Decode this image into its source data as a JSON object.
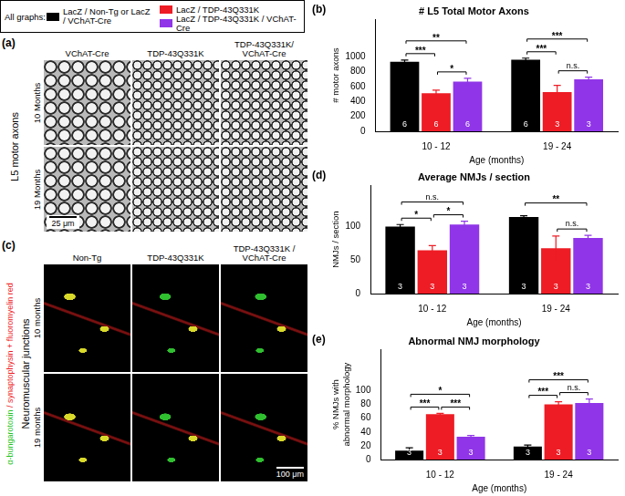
{
  "legend_box": {
    "title": "All graphs:"
  },
  "panel_a": {
    "label": "(a)",
    "side_label": "L5 motor axons",
    "columns": [
      "VChAT-Cre",
      "TDP-43Q331K",
      "TDP-43Q331K/ VChAT-Cre"
    ],
    "rows": [
      "10 Months",
      "19 Months"
    ],
    "scale_bar": "25 μm"
  },
  "panel_c": {
    "label": "(c)",
    "side_label": "Neuromuscular junctions",
    "stain": [
      {
        "text": "α-bungarotoxin",
        "color": "#22c322"
      },
      {
        "text": " / synaptophysin + fluoromyelin red",
        "color": "#ee1c25"
      }
    ],
    "columns": [
      "Non-Tg",
      "TDP-43Q331K",
      "TDP-43Q331K / VChAT-Cre"
    ],
    "rows": [
      "10 months",
      "19 months"
    ],
    "scale_bar": "100 μm"
  },
  "chart_data": [
    {
      "panel": "(b)",
      "type": "bar",
      "title": "# L5 Total Motor Axons",
      "x_label": "Age (months)",
      "y_label": "# motor axons",
      "categories": [
        "10 - 12",
        "19 - 24"
      ],
      "series": [
        {
          "name": "LacZ / Non-Tg or LacZ / VChAT-Cre",
          "color": "#000000",
          "values": [
            930,
            960
          ],
          "errors": [
            25,
            20
          ],
          "n": [
            6,
            6
          ]
        },
        {
          "name": "LacZ / TDP-43Q331K",
          "color": "#ee1c25",
          "values": [
            510,
            525
          ],
          "errors": [
            40,
            90
          ],
          "n": [
            6,
            3
          ]
        },
        {
          "name": "LacZ / TDP-43Q331K / VChAT-Cre",
          "color": "#9035e8",
          "values": [
            665,
            695
          ],
          "errors": [
            45,
            30
          ],
          "n": [
            6,
            3
          ]
        }
      ],
      "comparisons": [
        {
          "category": "10 - 12",
          "between": [
            0,
            1
          ],
          "label": "***"
        },
        {
          "category": "10 - 12",
          "between": [
            1,
            2
          ],
          "label": "*"
        },
        {
          "category": "10 - 12",
          "between": [
            0,
            2
          ],
          "label": "**"
        },
        {
          "category": "19 - 24",
          "between": [
            0,
            1
          ],
          "label": "***"
        },
        {
          "category": "19 - 24",
          "between": [
            1,
            2
          ],
          "label": "n.s."
        },
        {
          "category": "19 - 24",
          "between": [
            0,
            2
          ],
          "label": "***"
        }
      ],
      "ylim": [
        0,
        1500
      ],
      "yticks": [
        0,
        200,
        400,
        600,
        800,
        1000
      ],
      "grid": false
    },
    {
      "panel": "(d)",
      "type": "bar",
      "title": "Average NMJs / section",
      "x_label": "Age (months)",
      "y_label": "NMJs / section",
      "categories": [
        "10 - 12",
        "19 - 24"
      ],
      "series": [
        {
          "name": "LacZ / Non-Tg or LacZ / VChAT-Cre",
          "color": "#000000",
          "values": [
            99,
            113
          ],
          "errors": [
            3,
            2
          ],
          "n": [
            3,
            3
          ]
        },
        {
          "name": "LacZ / TDP-43Q331K",
          "color": "#ee1c25",
          "values": [
            64,
            67
          ],
          "errors": [
            7,
            18
          ],
          "n": [
            3,
            3
          ]
        },
        {
          "name": "LacZ / TDP-43Q331K / VChAT-Cre",
          "color": "#9035e8",
          "values": [
            102,
            82
          ],
          "errors": [
            5,
            4
          ],
          "n": [
            3,
            3
          ]
        }
      ],
      "comparisons": [
        {
          "category": "10 - 12",
          "between": [
            0,
            1
          ],
          "label": "*"
        },
        {
          "category": "10 - 12",
          "between": [
            1,
            2
          ],
          "label": "*"
        },
        {
          "category": "10 - 12",
          "between": [
            0,
            2
          ],
          "label": "n.s."
        },
        {
          "category": "19 - 24",
          "between": [
            1,
            2
          ],
          "label": "n.s."
        },
        {
          "category": "19 - 24",
          "between": [
            0,
            2
          ],
          "label": "**"
        }
      ],
      "ylim": [
        0,
        160
      ],
      "yticks": [
        0,
        50,
        100
      ],
      "grid": false
    },
    {
      "panel": "(e)",
      "type": "bar",
      "title": "Abnormal NMJ morphology",
      "x_label": "Age (months)",
      "y_label": "% NMJs with abnormal morphology",
      "categories": [
        "10 - 12",
        "19 - 24"
      ],
      "series": [
        {
          "name": "LacZ / Non-Tg or LacZ / VChAT-Cre",
          "color": "#000000",
          "values": [
            13,
            19
          ],
          "errors": [
            4,
            2
          ],
          "n": [
            3,
            3
          ]
        },
        {
          "name": "LacZ / TDP-43Q331K",
          "color": "#ee1c25",
          "values": [
            66,
            80
          ],
          "errors": [
            1,
            4
          ],
          "n": [
            3,
            3
          ]
        },
        {
          "name": "LacZ / TDP-43Q331K / VChAT-Cre",
          "color": "#9035e8",
          "values": [
            33,
            82
          ],
          "errors": [
            2,
            6
          ],
          "n": [
            3,
            3
          ]
        }
      ],
      "comparisons": [
        {
          "category": "10 - 12",
          "between": [
            0,
            1
          ],
          "label": "***"
        },
        {
          "category": "10 - 12",
          "between": [
            1,
            2
          ],
          "label": "***"
        },
        {
          "category": "10 - 12",
          "between": [
            0,
            2
          ],
          "label": "*"
        },
        {
          "category": "19 - 24",
          "between": [
            0,
            1
          ],
          "label": "***"
        },
        {
          "category": "19 - 24",
          "between": [
            1,
            2
          ],
          "label": "n.s."
        },
        {
          "category": "19 - 24",
          "between": [
            0,
            2
          ],
          "label": "***"
        }
      ],
      "ylim": [
        0,
        160
      ],
      "yticks": [
        0,
        20,
        40,
        60,
        80,
        100
      ],
      "grid": false
    }
  ]
}
